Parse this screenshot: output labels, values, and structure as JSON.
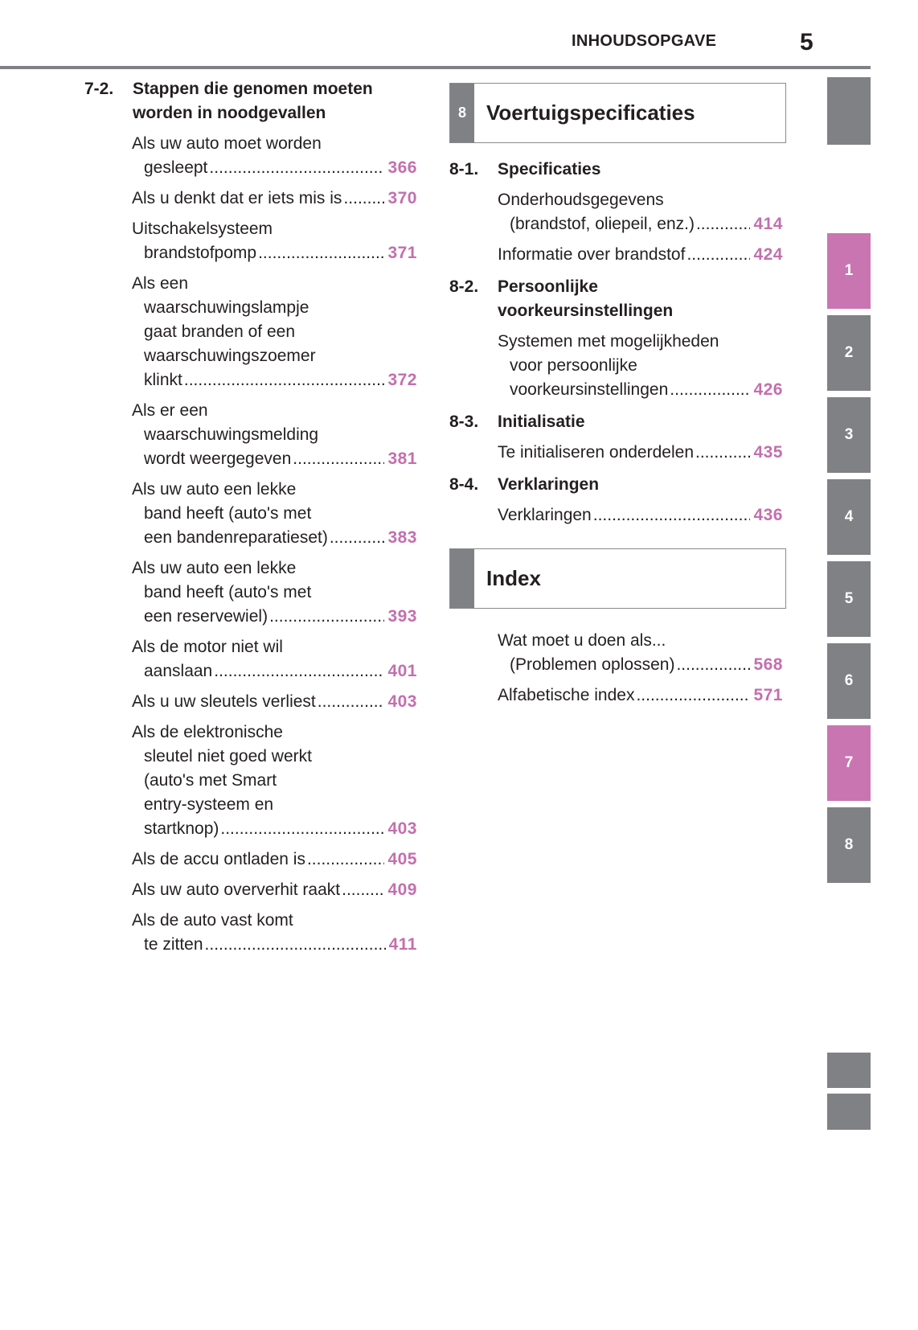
{
  "header": {
    "title": "INHOUDSOPGAVE",
    "page": "5"
  },
  "left": {
    "section": {
      "num": "7-2.",
      "lines": [
        "Stappen die genomen moeten",
        "worden in noodgevallen"
      ]
    },
    "entries": [
      {
        "lines": [
          "Als uw auto moet worden",
          "gesleept"
        ],
        "page": "366"
      },
      {
        "lines": [
          "Als u denkt dat er iets mis is"
        ],
        "page": "370"
      },
      {
        "lines": [
          "Uitschakelsysteem",
          "brandstofpomp"
        ],
        "page": "371"
      },
      {
        "lines": [
          "Als een",
          "waarschuwingslampje",
          "gaat branden of een",
          "waarschuwingszoemer",
          "klinkt"
        ],
        "page": "372"
      },
      {
        "lines": [
          "Als er een",
          "waarschuwingsmelding",
          "wordt weergegeven"
        ],
        "page": "381"
      },
      {
        "lines": [
          "Als uw auto een lekke",
          "band heeft (auto's met",
          "een bandenreparatieset)"
        ],
        "page": "383"
      },
      {
        "lines": [
          "Als uw auto een lekke",
          "band heeft (auto's met",
          "een reservewiel)"
        ],
        "page": "393"
      },
      {
        "lines": [
          "Als de motor niet wil",
          "aanslaan"
        ],
        "page": "401"
      },
      {
        "lines": [
          "Als u uw sleutels verliest"
        ],
        "page": "403"
      },
      {
        "lines": [
          "Als de elektronische",
          "sleutel niet goed werkt",
          "(auto's met Smart",
          "entry-systeem en",
          "startknop)"
        ],
        "page": "403"
      },
      {
        "lines": [
          "Als de accu ontladen is"
        ],
        "page": "405"
      },
      {
        "lines": [
          "Als uw auto oververhit raakt"
        ],
        "page": "409"
      },
      {
        "lines": [
          "Als de auto vast komt",
          "te zitten"
        ],
        "page": "411"
      }
    ]
  },
  "chapter8": {
    "num": "8",
    "title": "Voertuigspecificaties",
    "sections": [
      {
        "num": "8-1.",
        "lines": [
          "Specificaties"
        ],
        "entries": [
          {
            "lines": [
              "Onderhoudsgegevens",
              "(brandstof, oliepeil, enz.)"
            ],
            "page": "414"
          },
          {
            "lines": [
              "Informatie over brandstof"
            ],
            "page": "424"
          }
        ]
      },
      {
        "num": "8-2.",
        "lines": [
          "Persoonlijke",
          "voorkeursinstellingen"
        ],
        "entries": [
          {
            "lines": [
              "Systemen met mogelijkheden",
              "voor persoonlijke",
              "voorkeursinstellingen"
            ],
            "page": "426"
          }
        ]
      },
      {
        "num": "8-3.",
        "lines": [
          "Initialisatie"
        ],
        "entries": [
          {
            "lines": [
              "Te initialiseren onderdelen"
            ],
            "page": "435"
          }
        ]
      },
      {
        "num": "8-4.",
        "lines": [
          "Verklaringen"
        ],
        "entries": [
          {
            "lines": [
              "Verklaringen"
            ],
            "page": "436"
          }
        ]
      }
    ]
  },
  "index": {
    "title": "Index",
    "entries": [
      {
        "lines": [
          "Wat moet u doen als...",
          "(Problemen oplossen)"
        ],
        "page": "568"
      },
      {
        "lines": [
          "Alfabetische index"
        ],
        "page": "571"
      }
    ]
  },
  "tabs": [
    {
      "label": "1",
      "active": true
    },
    {
      "label": "2",
      "active": false
    },
    {
      "label": "3",
      "active": false
    },
    {
      "label": "4",
      "active": false
    },
    {
      "label": "5",
      "active": false
    },
    {
      "label": "6",
      "active": false
    },
    {
      "label": "7",
      "active": true
    },
    {
      "label": "8",
      "active": false
    }
  ],
  "colors": {
    "accent": "#c975b1",
    "page_number": "#c36fae",
    "tab_gray": "#808184"
  }
}
